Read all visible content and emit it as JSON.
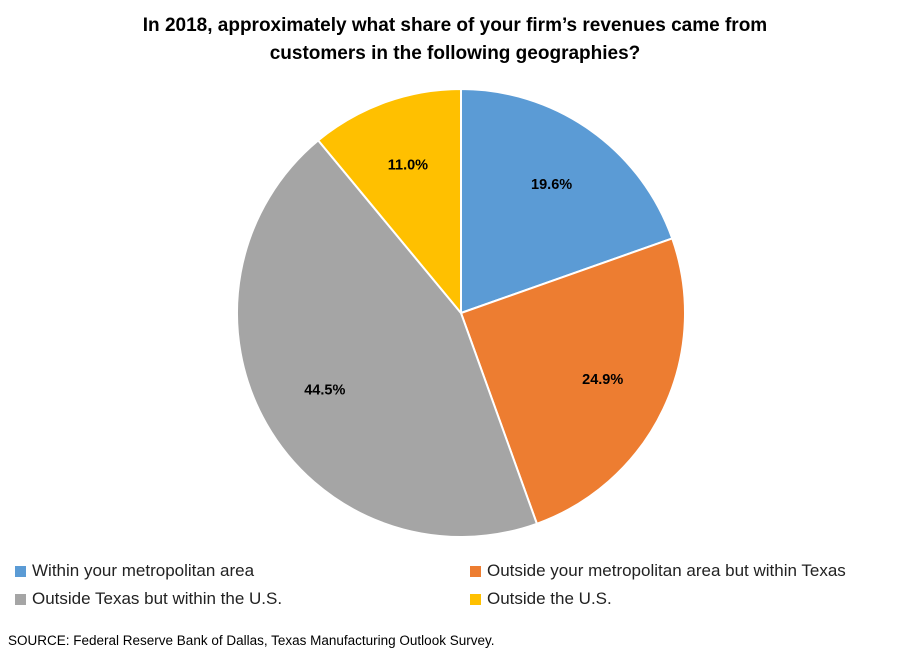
{
  "chart_data": {
    "type": "pie",
    "title_lines": [
      "In 2018, approximately what share of your firm’s revenues came from",
      "customers in the following geographies?"
    ],
    "slices": [
      {
        "label": "Within your metropolitan area",
        "value": 19.6,
        "display": "19.6%",
        "color": "#5B9BD5"
      },
      {
        "label": "Outside your metropolitan area but within Texas",
        "value": 24.9,
        "display": "24.9%",
        "color": "#ED7D31"
      },
      {
        "label": "Outside Texas but within the U.S.",
        "value": 44.5,
        "display": "44.5%",
        "color": "#A5A5A5"
      },
      {
        "label": "Outside the U.S.",
        "value": 11.0,
        "display": "11.0%",
        "color": "#FFC000"
      }
    ],
    "legend_placement": "bottom",
    "source": "SOURCE: Federal Reserve Bank of Dallas, Texas Manufacturing Outlook Survey."
  }
}
